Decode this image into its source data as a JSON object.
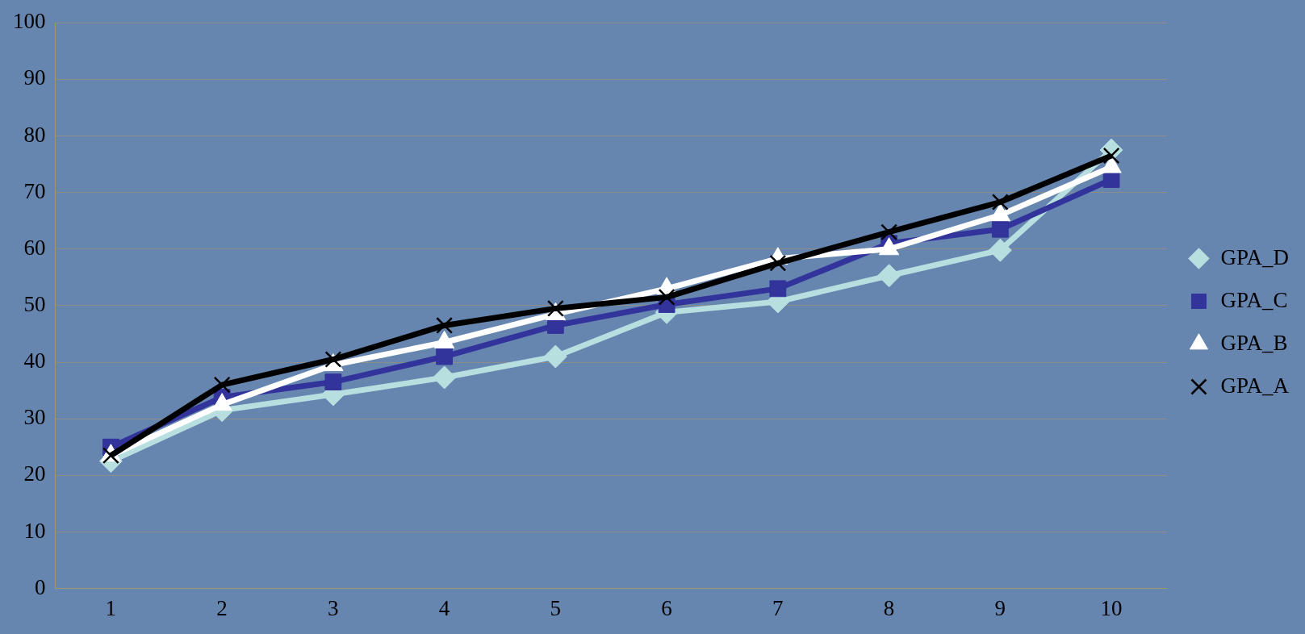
{
  "chart_data": {
    "type": "line",
    "categories": [
      "1",
      "2",
      "3",
      "4",
      "5",
      "6",
      "7",
      "8",
      "9",
      "10"
    ],
    "series": [
      {
        "name": "GPA_D",
        "color": "#b8dfe0",
        "marker": "diamond",
        "values": [
          22.5,
          31.5,
          34.3,
          37.3,
          41,
          48.8,
          50.7,
          55.3,
          59.8,
          77.5
        ]
      },
      {
        "name": "GPA_C",
        "color": "#33339c",
        "marker": "square",
        "values": [
          25,
          33.8,
          36.5,
          41,
          46.5,
          50.2,
          53,
          61,
          63.5,
          72.3
        ]
      },
      {
        "name": "GPA_B",
        "color": "#ffffff",
        "marker": "triangle",
        "values": [
          23.5,
          32.5,
          39.5,
          43.5,
          48.5,
          53,
          58.3,
          60,
          66,
          74.5
        ]
      },
      {
        "name": "GPA_A",
        "color": "#000000",
        "marker": "cross",
        "values": [
          23.5,
          36,
          40.5,
          46.5,
          49.5,
          51.5,
          57.5,
          63,
          68.3,
          76.5
        ]
      }
    ],
    "ylim": [
      0,
      100
    ],
    "yticks": [
      0,
      10,
      20,
      30,
      40,
      50,
      60,
      70,
      80,
      90,
      100
    ],
    "grid": "y",
    "legend": "right",
    "line_style": "solid"
  }
}
